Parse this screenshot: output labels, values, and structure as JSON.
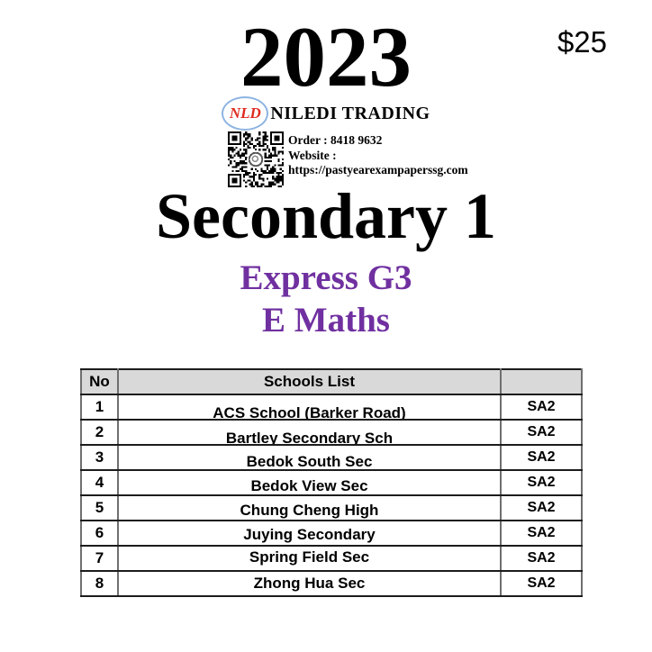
{
  "document": {
    "year": "2023",
    "price": "$25",
    "brand": {
      "logo_monogram": "NLD",
      "company_name": "NILEDI TRADING"
    },
    "contact": {
      "order_line": "Order : 8418 9632",
      "website_label": "Website :",
      "website_url": "https://pastyearexampaperssg.com"
    },
    "title": "Secondary 1",
    "stream": "Express G3",
    "subject": "E Maths",
    "colors": {
      "accent_purple": "#7030a0",
      "logo_red": "#e02b20",
      "logo_ring_blue": "#8db4e2",
      "table_header_bg": "#d9d9d9"
    }
  },
  "table": {
    "headers": {
      "no": "No",
      "schools": "Schools List",
      "paper": ""
    },
    "rows": [
      {
        "no": "1",
        "school": "ACS School (Barker Road)",
        "paper": "SA2"
      },
      {
        "no": "2",
        "school": "Bartley Secondary Sch",
        "paper": "SA2"
      },
      {
        "no": "3",
        "school": "Bedok South Sec",
        "paper": "SA2"
      },
      {
        "no": "4",
        "school": "Bedok View Sec",
        "paper": "SA2"
      },
      {
        "no": "5",
        "school": "Chung Cheng High",
        "paper": "SA2"
      },
      {
        "no": "6",
        "school": "Juying Secondary",
        "paper": "SA2"
      },
      {
        "no": "7",
        "school": "Spring Field Sec",
        "paper": "SA2"
      },
      {
        "no": "8",
        "school": "Zhong Hua Sec",
        "paper": "SA2"
      }
    ]
  }
}
